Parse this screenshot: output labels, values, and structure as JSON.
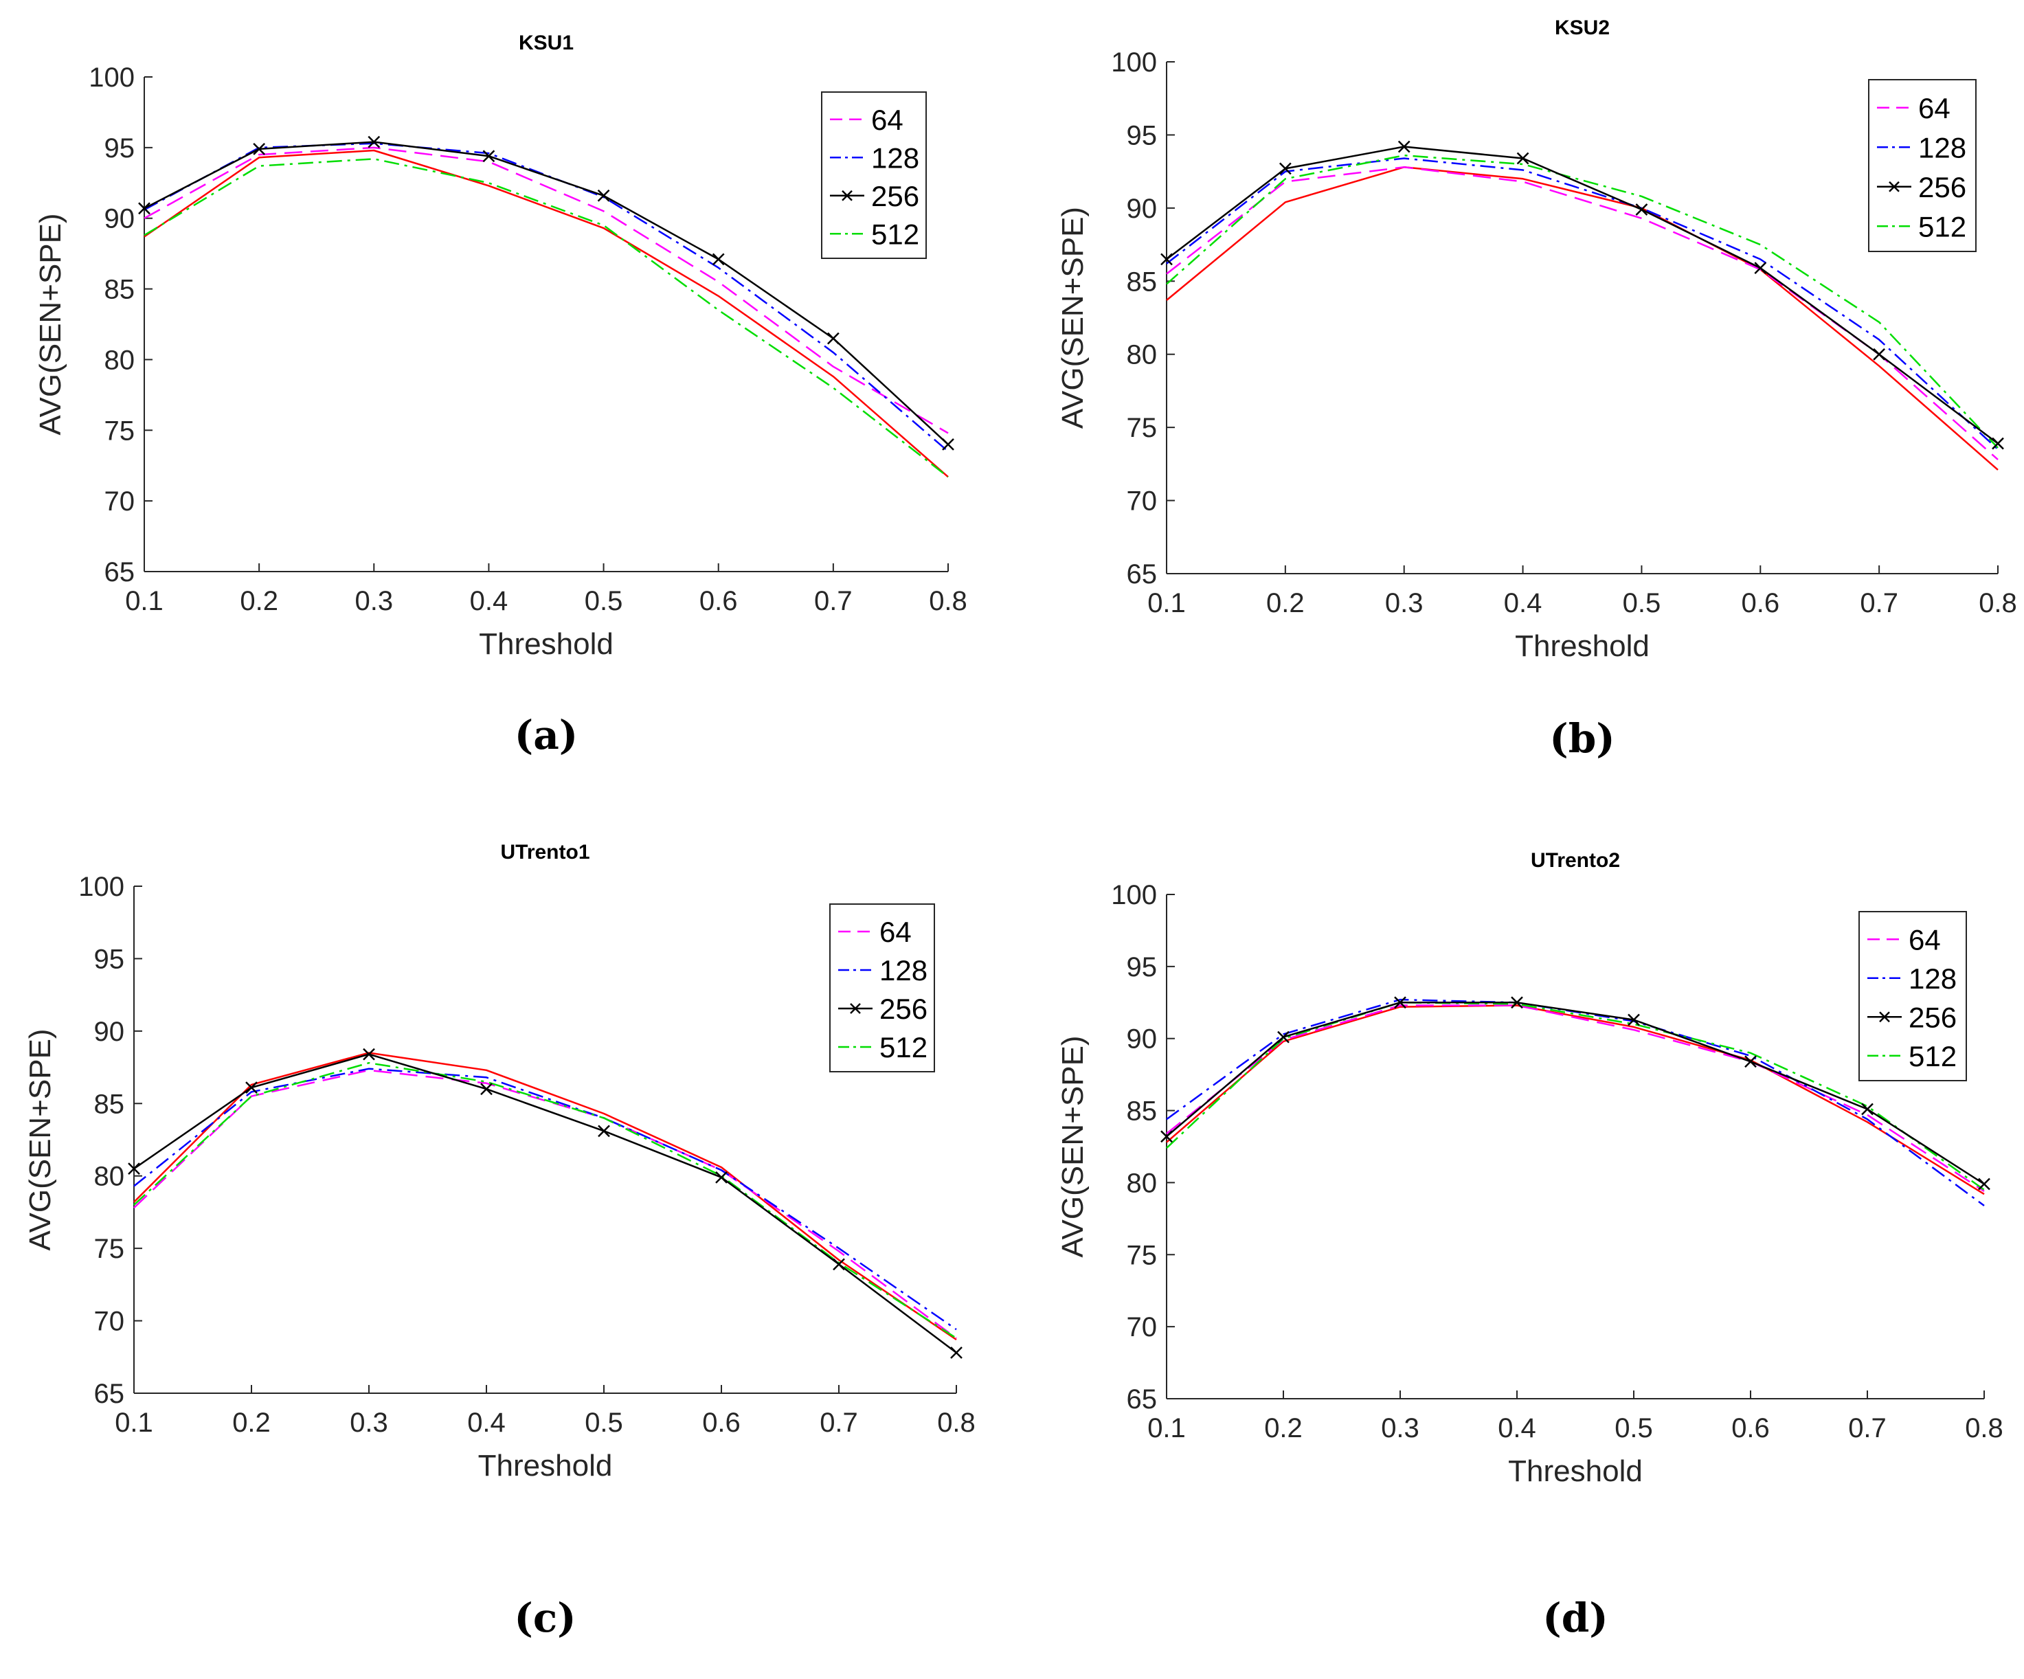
{
  "chart_data": [
    {
      "type": "line",
      "title": "KSU1",
      "xlabel": "Threshold",
      "ylabel": "AVG(SEN+SPE)",
      "caption": "(a)",
      "x": [
        0.1,
        0.2,
        0.3,
        0.4,
        0.5,
        0.6,
        0.7,
        0.8
      ],
      "xticks": [
        "0.1",
        "0.2",
        "0.3",
        "0.4",
        "0.5",
        "0.6",
        "0.7",
        "0.8"
      ],
      "ylim": [
        65,
        100
      ],
      "yticks": [
        "65",
        "70",
        "75",
        "80",
        "85",
        "90",
        "95",
        "100"
      ],
      "legend": "top-right",
      "series": [
        {
          "name": "64",
          "color": "#ff00ff",
          "style": "dash",
          "values": [
            90.0,
            94.5,
            95.0,
            94.0,
            90.5,
            85.5,
            79.5,
            74.8
          ]
        },
        {
          "name": "128",
          "color": "#0000ff",
          "style": "dashdot",
          "values": [
            90.6,
            95.0,
            95.3,
            94.6,
            91.5,
            86.5,
            80.5,
            73.5
          ]
        },
        {
          "name": "256",
          "color": "#000000",
          "style": "solid-x",
          "values": [
            90.7,
            94.9,
            95.4,
            94.4,
            91.6,
            87.1,
            81.5,
            74.0
          ]
        },
        {
          "name": "512",
          "color": "#00dd00",
          "style": "dashdot",
          "values": [
            88.8,
            93.7,
            94.2,
            92.5,
            89.5,
            83.5,
            78.0,
            71.7
          ]
        },
        {
          "name": "",
          "color": "#ff0000",
          "style": "solid",
          "values": [
            88.7,
            94.3,
            94.8,
            92.3,
            89.3,
            84.5,
            78.8,
            71.7
          ]
        }
      ]
    },
    {
      "type": "line",
      "title": "KSU2",
      "xlabel": "Threshold",
      "ylabel": "AVG(SEN+SPE)",
      "caption": "(b)",
      "x": [
        0.1,
        0.2,
        0.3,
        0.4,
        0.5,
        0.6,
        0.7,
        0.8
      ],
      "xticks": [
        "0.1",
        "0.2",
        "0.3",
        "0.4",
        "0.5",
        "0.6",
        "0.7",
        "0.8"
      ],
      "ylim": [
        65,
        100
      ],
      "yticks": [
        "65",
        "70",
        "75",
        "80",
        "85",
        "90",
        "95",
        "100"
      ],
      "legend": "top-right",
      "series": [
        {
          "name": "64",
          "color": "#ff00ff",
          "style": "dash",
          "values": [
            85.5,
            91.8,
            92.8,
            91.8,
            89.3,
            85.8,
            80.0,
            72.8
          ]
        },
        {
          "name": "128",
          "color": "#0000ff",
          "style": "dashdot",
          "values": [
            86.2,
            92.5,
            93.4,
            92.6,
            90.0,
            86.5,
            81.0,
            73.5
          ]
        },
        {
          "name": "256",
          "color": "#000000",
          "style": "solid-x",
          "values": [
            86.5,
            92.7,
            94.2,
            93.4,
            89.9,
            85.9,
            80.0,
            73.9
          ]
        },
        {
          "name": "512",
          "color": "#00dd00",
          "style": "dashdot",
          "values": [
            84.8,
            92.0,
            93.6,
            93.0,
            90.8,
            87.5,
            82.2,
            73.6
          ]
        },
        {
          "name": "",
          "color": "#ff0000",
          "style": "solid",
          "values": [
            83.7,
            90.4,
            92.8,
            92.0,
            90.0,
            85.8,
            79.2,
            72.1
          ]
        }
      ]
    },
    {
      "type": "line",
      "title": "UTrento1",
      "xlabel": "Threshold",
      "ylabel": "AVG(SEN+SPE)",
      "caption": "(c)",
      "x": [
        0.1,
        0.2,
        0.3,
        0.4,
        0.5,
        0.6,
        0.7,
        0.8
      ],
      "xticks": [
        "0.1",
        "0.2",
        "0.3",
        "0.4",
        "0.5",
        "0.6",
        "0.7",
        "0.8"
      ],
      "ylim": [
        65,
        100
      ],
      "yticks": [
        "65",
        "70",
        "75",
        "80",
        "85",
        "90",
        "95",
        "100"
      ],
      "legend": "top-right",
      "series": [
        {
          "name": "64",
          "color": "#ff00ff",
          "style": "dash",
          "values": [
            77.8,
            85.5,
            87.3,
            86.4,
            84.0,
            80.4,
            74.8,
            68.8
          ]
        },
        {
          "name": "128",
          "color": "#0000ff",
          "style": "dashdot",
          "values": [
            79.3,
            85.8,
            87.4,
            86.8,
            84.0,
            80.4,
            75.0,
            69.4
          ]
        },
        {
          "name": "256",
          "color": "#000000",
          "style": "solid-x",
          "values": [
            80.5,
            86.1,
            88.4,
            86.0,
            83.1,
            79.9,
            73.9,
            67.8
          ]
        },
        {
          "name": "512",
          "color": "#00dd00",
          "style": "dashdot",
          "values": [
            78.0,
            85.5,
            87.8,
            86.5,
            84.0,
            80.0,
            74.0,
            68.8
          ]
        },
        {
          "name": "",
          "color": "#ff0000",
          "style": "solid",
          "values": [
            78.2,
            86.3,
            88.5,
            87.3,
            84.3,
            80.6,
            74.2,
            68.7
          ]
        }
      ]
    },
    {
      "type": "line",
      "title": "UTrento2",
      "xlabel": "Threshold",
      "ylabel": "AVG(SEN+SPE)",
      "caption": "(d)",
      "x": [
        0.1,
        0.2,
        0.3,
        0.4,
        0.5,
        0.6,
        0.7,
        0.8
      ],
      "xticks": [
        "0.1",
        "0.2",
        "0.3",
        "0.4",
        "0.5",
        "0.6",
        "0.7",
        "0.8"
      ],
      "ylim": [
        65,
        100
      ],
      "yticks": [
        "65",
        "70",
        "75",
        "80",
        "85",
        "90",
        "95",
        "100"
      ],
      "legend": "top-right",
      "series": [
        {
          "name": "64",
          "color": "#ff00ff",
          "style": "dash",
          "values": [
            83.4,
            89.9,
            92.3,
            92.3,
            90.6,
            88.4,
            84.7,
            79.4
          ]
        },
        {
          "name": "128",
          "color": "#0000ff",
          "style": "dashdot",
          "values": [
            84.4,
            90.3,
            92.7,
            92.5,
            91.2,
            88.8,
            84.4,
            78.4
          ]
        },
        {
          "name": "256",
          "color": "#000000",
          "style": "solid-x",
          "values": [
            83.2,
            90.1,
            92.5,
            92.5,
            91.3,
            88.4,
            85.1,
            79.9
          ]
        },
        {
          "name": "512",
          "color": "#00dd00",
          "style": "dashdot",
          "values": [
            82.4,
            90.0,
            92.5,
            92.4,
            91.0,
            89.0,
            85.3,
            79.5
          ]
        },
        {
          "name": "",
          "color": "#ff0000",
          "style": "solid",
          "values": [
            82.8,
            89.8,
            92.2,
            92.3,
            90.8,
            88.5,
            84.2,
            79.2
          ]
        }
      ]
    }
  ]
}
